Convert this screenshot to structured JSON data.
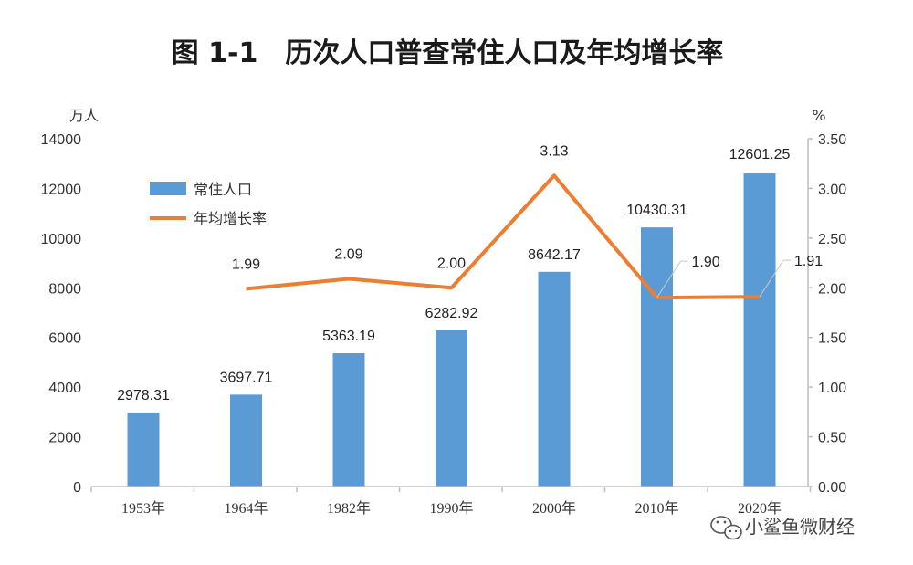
{
  "chart_data": {
    "type": "bar",
    "title": "图 1-1　历次人口普查常住人口及年均增长率",
    "categories": [
      "1953年",
      "1964年",
      "1982年",
      "1990年",
      "2000年",
      "2010年",
      "2020年"
    ],
    "y_left_unit": "万人",
    "y_right_unit": "%",
    "y_left_range": [
      0,
      14000
    ],
    "y_left_ticks": [
      "0",
      "2000",
      "4000",
      "6000",
      "8000",
      "10000",
      "12000",
      "14000"
    ],
    "y_right_range": [
      0,
      3.5
    ],
    "y_right_ticks": [
      "0.00",
      "0.50",
      "1.00",
      "1.50",
      "2.00",
      "2.50",
      "3.00",
      "3.50"
    ],
    "grid": false,
    "legend_position": "top-left",
    "series": [
      {
        "name": "常住人口",
        "type": "bar",
        "axis": "left",
        "color": "#5b9bd5",
        "values": [
          2978.31,
          3697.71,
          5363.19,
          6282.92,
          8642.17,
          10430.31,
          12601.25
        ],
        "labels": [
          "2978.31",
          "3697.71",
          "5363.19",
          "6282.92",
          "8642.17",
          "10430.31",
          "12601.25"
        ]
      },
      {
        "name": "年均增长率",
        "type": "line",
        "axis": "right",
        "color": "#ed7d31",
        "values": [
          null,
          1.99,
          2.09,
          2.0,
          3.13,
          1.9,
          1.91
        ],
        "labels": [
          "",
          "1.99",
          "2.09",
          "2.00",
          "3.13",
          "1.90",
          "1.91"
        ]
      }
    ]
  },
  "watermark": {
    "text": "小鲨鱼微财经",
    "icon": "wechat-icon"
  }
}
